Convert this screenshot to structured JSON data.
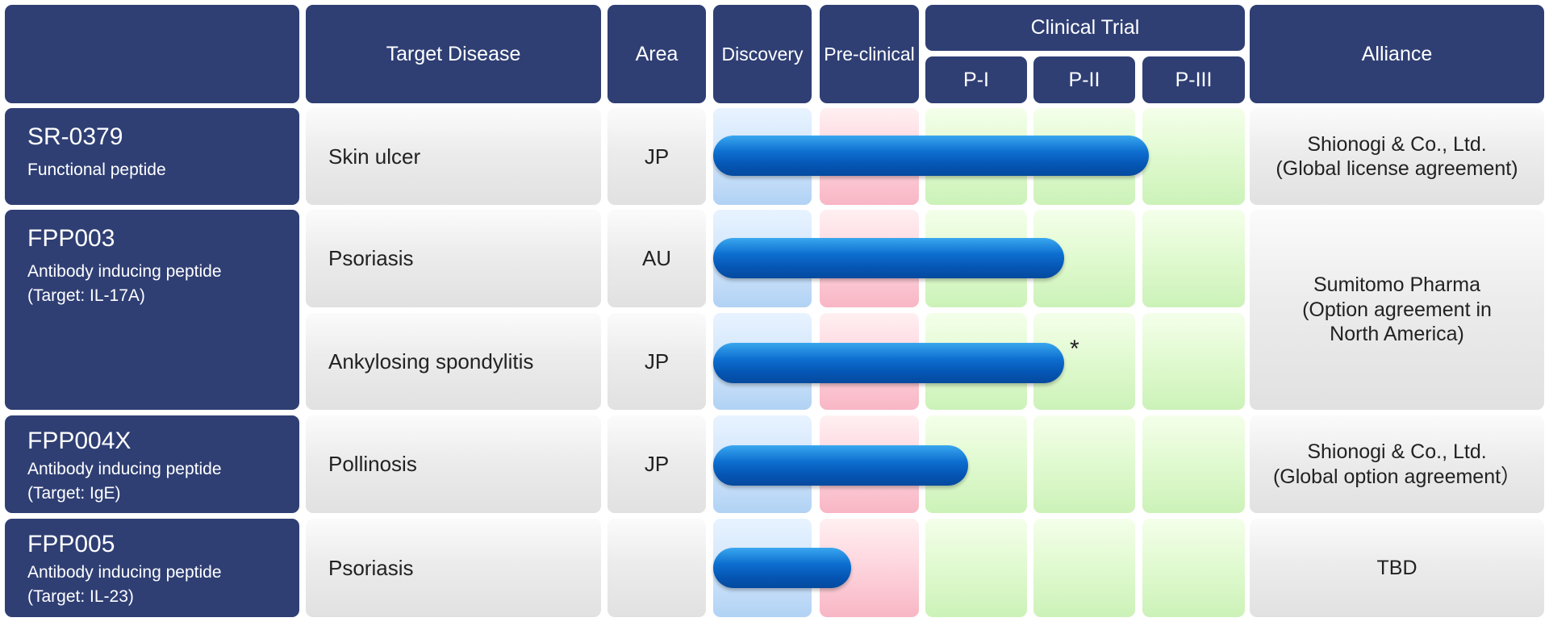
{
  "headers": {
    "target_disease": "Target Disease",
    "area": "Area",
    "discovery": "Discovery",
    "preclinical": "Pre-clinical",
    "clinical_trial": "Clinical Trial",
    "p1": "P-I",
    "p2": "P-II",
    "p3": "P-III",
    "alliance": "Alliance"
  },
  "candidates": [
    {
      "name": "SR-0379",
      "desc": [
        "Functional peptide"
      ]
    },
    {
      "name": "FPP003",
      "desc": [
        "Antibody inducing peptide",
        "(Target: IL-17A)"
      ]
    },
    {
      "name": "FPP004X",
      "desc": [
        "Antibody inducing peptide",
        "(Target: IgE)"
      ]
    },
    {
      "name": "FPP005",
      "desc": [
        "Antibody inducing peptide",
        "(Target: IL-23)"
      ]
    }
  ],
  "rows": [
    {
      "disease": "Skin ulcer",
      "area": "JP",
      "stage_reached": "P-III",
      "progress": 0.82
    },
    {
      "disease": "Psoriasis",
      "area": "AU",
      "stage_reached": "P-II",
      "progress": 0.66
    },
    {
      "disease": "Ankylosing spondylitis",
      "area": "JP",
      "stage_reached": "P-II",
      "progress": 0.66,
      "note": "*"
    },
    {
      "disease": "Pollinosis",
      "area": "JP",
      "stage_reached": "P-I",
      "progress": 0.48
    },
    {
      "disease": "Psoriasis",
      "area": "",
      "stage_reached": "Pre-clinical",
      "progress": 0.26
    }
  ],
  "alliances": [
    [
      "Shionogi & Co., Ltd.",
      "(Global license agreement)"
    ],
    [
      "Sumitomo Pharma",
      "(Option agreement in",
      "North America)"
    ],
    [
      "Shionogi & Co., Ltd.",
      "(Global option agreement）"
    ],
    [
      "TBD"
    ]
  ],
  "colors": {
    "header": "#2f3f74",
    "discovery": "#cfe4fb",
    "preclinical": "#fdd1da",
    "clinical": "#def9cd",
    "bar": "#0d6fd0"
  }
}
